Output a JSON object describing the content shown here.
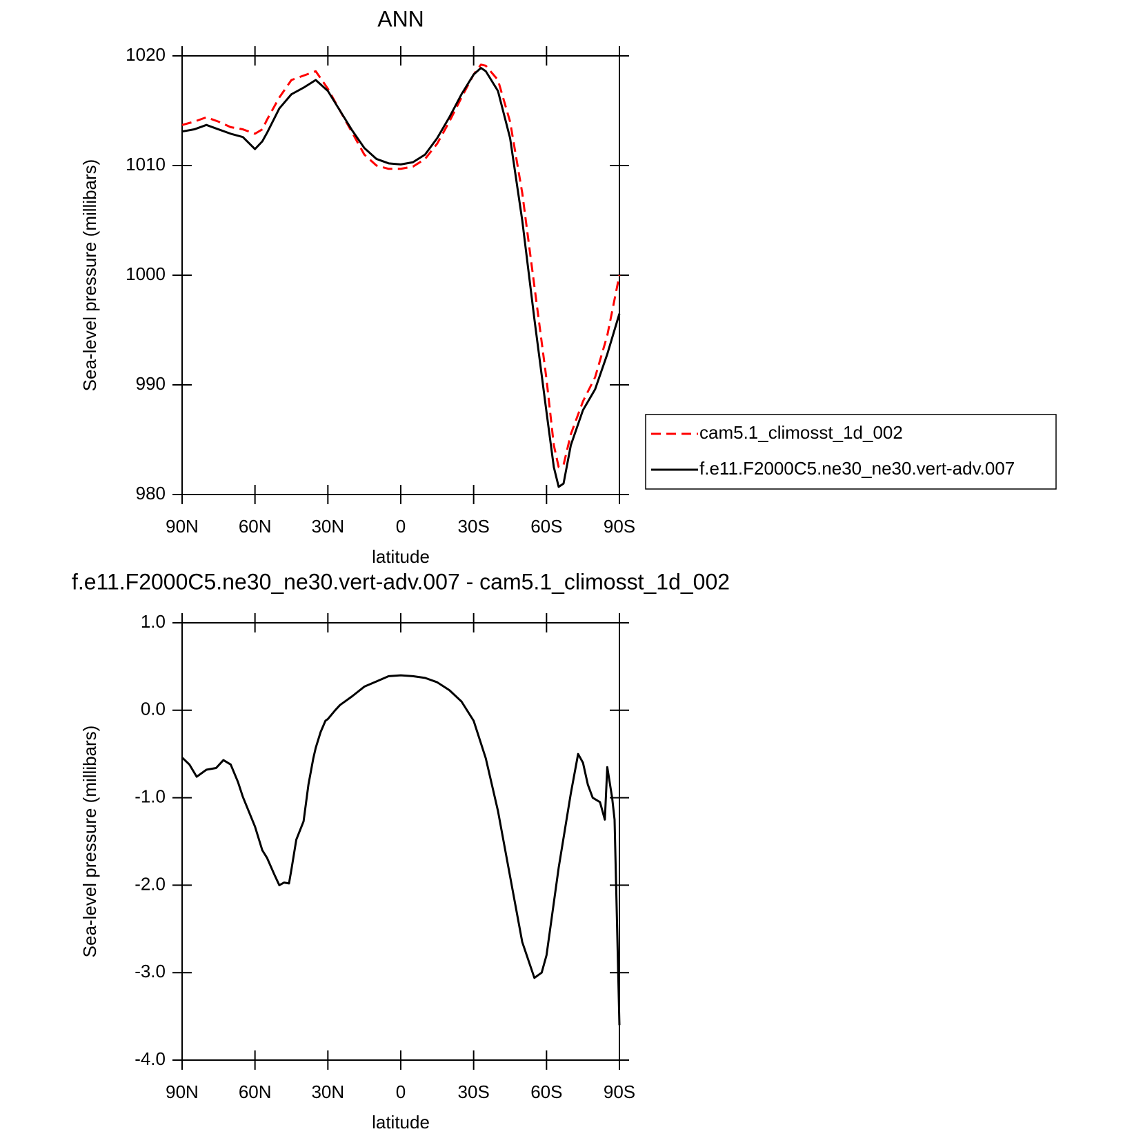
{
  "chart_data": [
    {
      "type": "line",
      "title": "ANN",
      "x_label": "latitude",
      "y_label": "Sea-level pressure (millibars)",
      "x": [
        90,
        85,
        80,
        75,
        70,
        65,
        60,
        57,
        55,
        50,
        45,
        40,
        35,
        30,
        25,
        20,
        15,
        10,
        5,
        0,
        -5,
        -10,
        -15,
        -20,
        -25,
        -30,
        -33,
        -35,
        -40,
        -45,
        -50,
        -55,
        -60,
        -63,
        -65,
        -67,
        -70,
        -75,
        -80,
        -85,
        -90
      ],
      "series": [
        {
          "name": "cam5.1_climosst_1d_002",
          "color": "#ff0000",
          "line_style": "dashed",
          "values": [
            1013.7,
            1014.0,
            1014.4,
            1014.0,
            1013.5,
            1013.3,
            1012.9,
            1013.3,
            1014.2,
            1016.2,
            1017.8,
            1018.2,
            1018.6,
            1017.0,
            1015.0,
            1013.0,
            1011.0,
            1010.0,
            1009.7,
            1009.7,
            1009.9,
            1010.6,
            1012.0,
            1014.0,
            1016.2,
            1018.3,
            1019.2,
            1019.1,
            1017.8,
            1014,
            1007.5,
            999,
            990.5,
            984.5,
            982.5,
            982.7,
            985.5,
            988.5,
            990.7,
            994.5,
            1000
          ]
        },
        {
          "name": "f.e11.F2000C5.ne30_ne30.vert-adv.007",
          "color": "#000000",
          "line_style": "solid",
          "values": [
            1013.1,
            1013.3,
            1013.7,
            1013.3,
            1012.9,
            1012.6,
            1011.5,
            1012.2,
            1013.0,
            1015.2,
            1016.5,
            1017.1,
            1017.8,
            1016.8,
            1015.0,
            1013.2,
            1011.6,
            1010.6,
            1010.2,
            1010.1,
            1010.3,
            1011.0,
            1012.5,
            1014.4,
            1016.5,
            1018.3,
            1018.9,
            1018.6,
            1016.8,
            1012.5,
            1005,
            996,
            987.5,
            982.5,
            980.7,
            981,
            984.5,
            987.7,
            989.6,
            992.8,
            996.5
          ]
        }
      ],
      "xlim": [
        90,
        -90
      ],
      "xticks": [
        {
          "value": 90,
          "label": "90N"
        },
        {
          "value": 60,
          "label": "60N"
        },
        {
          "value": 30,
          "label": "30N"
        },
        0,
        {
          "value": -30,
          "label": "30S"
        },
        {
          "value": -60,
          "label": "60S"
        },
        {
          "value": -90,
          "label": "90S"
        }
      ],
      "ylim": [
        980,
        1020
      ],
      "yticks": [
        980,
        990,
        1000,
        1010,
        1020
      ],
      "legend": "right"
    },
    {
      "type": "line",
      "title": "f.e11.F2000C5.ne30_ne30.vert-adv.007 - cam5.1_climosst_1d_002",
      "x_label": "latitude",
      "y_label": "Sea-level pressure (millibars)",
      "x": [
        90,
        87,
        84,
        80,
        76,
        73,
        70,
        67,
        65,
        60,
        57,
        55,
        52,
        50,
        48,
        46,
        45,
        43,
        40,
        38,
        36,
        35,
        33,
        31,
        30,
        27,
        25,
        20,
        15,
        10,
        5,
        0,
        -5,
        -10,
        -15,
        -20,
        -25,
        -30,
        -35,
        -40,
        -45,
        -50,
        -55,
        -58,
        -60,
        -65,
        -70,
        -73,
        -75,
        -77,
        -79,
        -82,
        -84,
        -85,
        -87,
        -88,
        -90
      ],
      "values": [
        -0.54,
        -0.62,
        -0.76,
        -0.68,
        -0.66,
        -0.57,
        -0.62,
        -0.82,
        -0.99,
        -1.33,
        -1.6,
        -1.69,
        -1.88,
        -2.0,
        -1.97,
        -1.98,
        -1.82,
        -1.48,
        -1.27,
        -0.85,
        -0.55,
        -0.43,
        -0.25,
        -0.12,
        -0.1,
        0.0,
        0.06,
        0.16,
        0.27,
        0.33,
        0.39,
        0.4,
        0.39,
        0.37,
        0.32,
        0.23,
        0.1,
        -0.12,
        -0.55,
        -1.15,
        -1.9,
        -2.65,
        -3.06,
        -3.0,
        -2.8,
        -1.8,
        -0.95,
        -0.5,
        -0.6,
        -0.85,
        -1.0,
        -1.05,
        -1.25,
        -0.65,
        -1.0,
        -1.25,
        -3.6
      ],
      "color": "#000000",
      "xlim": [
        90,
        -90
      ],
      "xticks": [
        {
          "value": 90,
          "label": "90N"
        },
        {
          "value": 60,
          "label": "60N"
        },
        {
          "value": 30,
          "label": "30N"
        },
        0,
        {
          "value": -30,
          "label": "30S"
        },
        {
          "value": -60,
          "label": "60S"
        },
        {
          "value": -90,
          "label": "90S"
        }
      ],
      "ylim": [
        -4,
        1
      ],
      "yticks": [
        {
          "value": -4,
          "label": "-4.0"
        },
        {
          "value": -3,
          "label": "-3.0"
        },
        {
          "value": -2,
          "label": "-2.0"
        },
        {
          "value": -1,
          "label": "-1.0"
        },
        {
          "value": 0,
          "label": "0.0"
        },
        {
          "value": 1,
          "label": "1.0"
        }
      ]
    }
  ]
}
